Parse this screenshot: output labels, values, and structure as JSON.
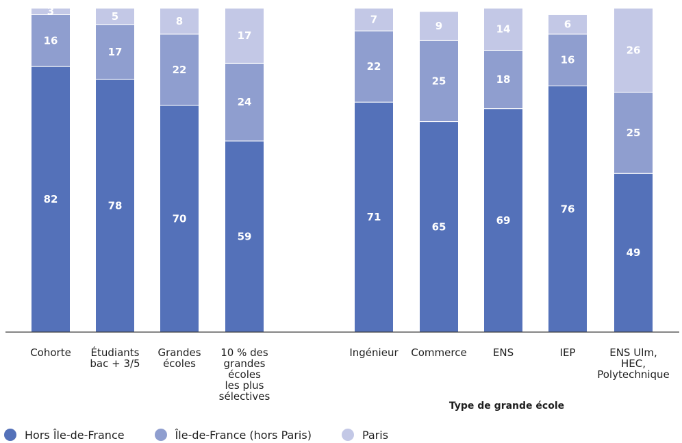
{
  "chart_data": {
    "type": "bar",
    "stacked": true,
    "orientation": "vertical",
    "ylim": [
      0,
      100
    ],
    "grid": false,
    "legend_position": "bottom-left",
    "xlabel": "Type de grande école",
    "categories": [
      [
        "Cohorte"
      ],
      [
        "Étudiants",
        "bac + 3/5"
      ],
      [
        "Grandes",
        "écoles"
      ],
      [
        "10 % des",
        "grandes",
        "écoles",
        "les plus",
        "sélectives"
      ],
      [
        "Ingénieur"
      ],
      [
        "Commerce"
      ],
      [
        "ENS"
      ],
      [
        "IEP"
      ],
      [
        "ENS Ulm,",
        "HEC,",
        "Polytechnique"
      ]
    ],
    "series": [
      {
        "name": "Hors Île-de-France",
        "color": "#5471b9",
        "values": [
          82,
          78,
          70,
          59,
          71,
          65,
          69,
          76,
          49
        ]
      },
      {
        "name": "Île-de-France (hors Paris)",
        "color": "#8f9ecf",
        "values": [
          16,
          17,
          22,
          24,
          22,
          25,
          18,
          16,
          25
        ]
      },
      {
        "name": "Paris",
        "color": "#c3c8e6",
        "values": [
          3,
          5,
          8,
          17,
          7,
          9,
          14,
          6,
          26
        ]
      }
    ]
  }
}
